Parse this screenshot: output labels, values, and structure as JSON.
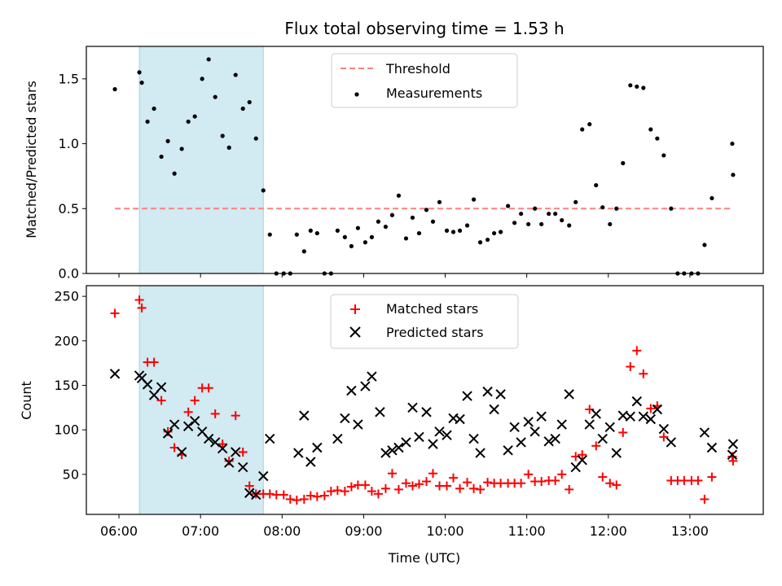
{
  "title": "Flux total observing time = 1.53 h",
  "colors": {
    "threshold": "#ff8080",
    "shade": "#add8e6",
    "matched": "#ff0000",
    "predicted": "#000000",
    "measure": "#000000"
  },
  "chart_data": [
    {
      "type": "scatter",
      "ylabel": "Matched/Predicted stars",
      "ylim": [
        0,
        1.75
      ],
      "yticks": [
        "0.0",
        "0.5",
        "1.0",
        "1.5"
      ],
      "xlim": [
        5.6,
        13.9
      ],
      "shaded_span": [
        6.25,
        7.77
      ],
      "legend": {
        "placement": "top-center",
        "entries": [
          "Threshold",
          "Measurements"
        ]
      },
      "series": [
        {
          "name": "Threshold",
          "kind": "dashed-line",
          "x": [
            5.95,
            13.5
          ],
          "values": [
            0.5,
            0.5
          ]
        },
        {
          "name": "Measurements",
          "kind": "dot",
          "x": [
            5.95,
            6.25,
            6.28,
            6.35,
            6.43,
            6.52,
            6.6,
            6.68,
            6.77,
            6.85,
            6.93,
            7.02,
            7.1,
            7.18,
            7.27,
            7.35,
            7.43,
            7.52,
            7.6,
            7.68,
            7.77,
            7.85,
            7.93,
            8.02,
            8.1,
            8.18,
            8.27,
            8.35,
            8.43,
            8.52,
            8.6,
            8.68,
            8.77,
            8.85,
            8.93,
            9.02,
            9.1,
            9.18,
            9.27,
            9.35,
            9.43,
            9.52,
            9.6,
            9.68,
            9.77,
            9.85,
            9.93,
            10.02,
            10.1,
            10.18,
            10.27,
            10.35,
            10.43,
            10.52,
            10.6,
            10.68,
            10.77,
            10.85,
            10.93,
            11.02,
            11.1,
            11.18,
            11.27,
            11.35,
            11.43,
            11.52,
            11.6,
            11.68,
            11.77,
            11.85,
            11.93,
            12.02,
            12.1,
            12.18,
            12.27,
            12.35,
            12.43,
            12.52,
            12.6,
            12.68,
            12.77,
            12.85,
            12.93,
            13.02,
            13.1,
            13.18,
            13.27,
            13.52,
            13.53
          ],
          "values": [
            1.42,
            1.55,
            1.47,
            1.17,
            1.27,
            0.9,
            1.02,
            0.77,
            0.96,
            1.17,
            1.21,
            1.5,
            1.65,
            1.36,
            1.06,
            0.97,
            1.53,
            1.27,
            1.32,
            1.04,
            0.64,
            0.3,
            0,
            0,
            0,
            0.3,
            0.17,
            0.33,
            0.31,
            0,
            0,
            0.33,
            0.28,
            0.21,
            0.35,
            0.24,
            0.28,
            0.4,
            0.36,
            0.45,
            0.6,
            0.27,
            0.43,
            0.31,
            0.49,
            0.4,
            0.55,
            0.33,
            0.32,
            0.33,
            0.37,
            0.57,
            0.24,
            0.26,
            0.31,
            0.32,
            0.52,
            0.39,
            0.46,
            0.38,
            0.5,
            0.38,
            0.46,
            0.46,
            0.41,
            0.37,
            0.55,
            1.11,
            1.15,
            0.68,
            0.51,
            0.38,
            0.5,
            0.85,
            1.45,
            1.44,
            1.43,
            1.11,
            1.04,
            0.91,
            0.5,
            0,
            0,
            0,
            0,
            0.22,
            0.58,
            1.0,
            0.76
          ]
        }
      ]
    },
    {
      "type": "scatter",
      "ylabel": "Count",
      "xlabel": "Time (UTC)",
      "ylim": [
        5,
        262
      ],
      "yticks": [
        "50",
        "100",
        "150",
        "200",
        "250"
      ],
      "xlim": [
        5.6,
        13.9
      ],
      "xticks": [
        "06:00",
        "07:00",
        "08:00",
        "09:00",
        "10:00",
        "11:00",
        "12:00",
        "13:00"
      ],
      "shaded_span": [
        6.25,
        7.77
      ],
      "legend": {
        "placement": "top-center",
        "entries": [
          "Matched stars",
          "Predicted stars"
        ]
      },
      "series": [
        {
          "name": "Matched stars",
          "kind": "plus",
          "x": [
            5.95,
            6.25,
            6.28,
            6.35,
            6.43,
            6.52,
            6.6,
            6.68,
            6.77,
            6.85,
            6.93,
            7.02,
            7.1,
            7.18,
            7.27,
            7.35,
            7.43,
            7.52,
            7.6,
            7.68,
            7.77,
            7.85,
            7.93,
            8.02,
            8.1,
            8.18,
            8.27,
            8.35,
            8.43,
            8.52,
            8.6,
            8.68,
            8.77,
            8.85,
            8.93,
            9.02,
            9.1,
            9.18,
            9.27,
            9.35,
            9.43,
            9.52,
            9.6,
            9.68,
            9.77,
            9.85,
            9.93,
            10.02,
            10.1,
            10.18,
            10.27,
            10.35,
            10.43,
            10.52,
            10.6,
            10.68,
            10.77,
            10.85,
            10.93,
            11.02,
            11.1,
            11.18,
            11.27,
            11.35,
            11.43,
            11.52,
            11.6,
            11.68,
            11.77,
            11.85,
            11.93,
            12.02,
            12.1,
            12.18,
            12.27,
            12.35,
            12.43,
            12.52,
            12.6,
            12.68,
            12.77,
            12.85,
            12.93,
            13.02,
            13.1,
            13.18,
            13.27,
            13.52,
            13.53
          ],
          "values": [
            231,
            246,
            237,
            176,
            176,
            133,
            98,
            80,
            72,
            120,
            133,
            147,
            147,
            118,
            84,
            65,
            116,
            75,
            37,
            28,
            28,
            28,
            27,
            27,
            22,
            21,
            22,
            26,
            25,
            26,
            31,
            32,
            31,
            36,
            38,
            38,
            31,
            28,
            34,
            51,
            33,
            40,
            37,
            39,
            42,
            51,
            37,
            37,
            46,
            34,
            41,
            34,
            33,
            41,
            40,
            40,
            40,
            40,
            40,
            50,
            42,
            42,
            43,
            43,
            50,
            33,
            70,
            72,
            123,
            82,
            47,
            40,
            38,
            97,
            171,
            189,
            163,
            124,
            127,
            92,
            43,
            43,
            43,
            43,
            43,
            22,
            47,
            70,
            65
          ]
        },
        {
          "name": "Predicted stars",
          "kind": "x",
          "x": [
            5.95,
            6.25,
            6.28,
            6.35,
            6.43,
            6.52,
            6.6,
            6.68,
            6.77,
            6.85,
            6.93,
            7.02,
            7.1,
            7.18,
            7.27,
            7.35,
            7.43,
            7.52,
            7.6,
            7.68,
            7.77,
            7.85,
            8.2,
            8.27,
            8.35,
            8.43,
            8.68,
            8.77,
            8.85,
            8.93,
            9.02,
            9.1,
            9.2,
            9.27,
            9.35,
            9.43,
            9.52,
            9.6,
            9.68,
            9.77,
            9.85,
            9.93,
            10.02,
            10.1,
            10.18,
            10.27,
            10.35,
            10.43,
            10.52,
            10.6,
            10.68,
            10.77,
            10.85,
            10.93,
            11.02,
            11.1,
            11.18,
            11.27,
            11.35,
            11.43,
            11.52,
            11.6,
            11.68,
            11.77,
            11.85,
            11.93,
            12.02,
            12.1,
            12.18,
            12.27,
            12.35,
            12.43,
            12.52,
            12.6,
            12.68,
            12.77,
            13.18,
            13.27,
            13.52,
            13.53
          ],
          "values": [
            163,
            161,
            158,
            151,
            139,
            148,
            96,
            106,
            75,
            104,
            110,
            98,
            90,
            86,
            79,
            63,
            75,
            58,
            29,
            27,
            48,
            90,
            74,
            116,
            64,
            80,
            90,
            113,
            144,
            106,
            149,
            160,
            120,
            74,
            77,
            80,
            86,
            125,
            92,
            120,
            84,
            98,
            94,
            113,
            112,
            138,
            90,
            74,
            143,
            123,
            140,
            77,
            103,
            86,
            109,
            98,
            115,
            87,
            90,
            106,
            140,
            58,
            66,
            106,
            118,
            90,
            103,
            74,
            116,
            115,
            132,
            115,
            112,
            123,
            101,
            86,
            97,
            80,
            72,
            84
          ]
        }
      ]
    }
  ]
}
